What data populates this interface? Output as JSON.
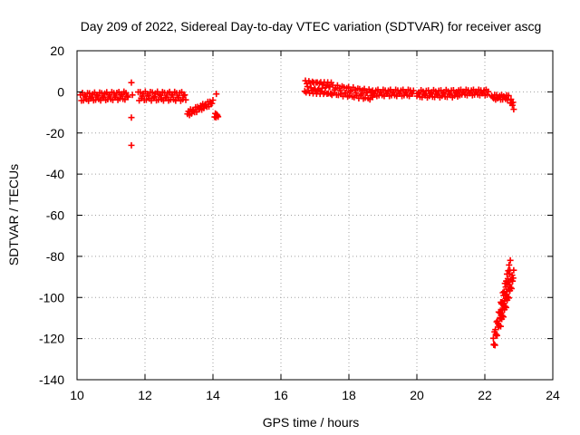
{
  "chart_data": {
    "type": "scatter",
    "title": "Day 209 of 2022, Sidereal Day-to-day VTEC variation (SDTVAR) for receiver ascg",
    "xlabel": "GPS time / hours",
    "ylabel": "SDTVAR / TECUs",
    "xlim": [
      10,
      24
    ],
    "ylim": [
      -140,
      20
    ],
    "xticks": [
      10,
      12,
      14,
      16,
      18,
      20,
      22,
      24
    ],
    "yticks": [
      20,
      0,
      -20,
      -40,
      -60,
      -80,
      -100,
      -120,
      -140
    ],
    "xtick_labels": [
      "10",
      "12",
      "14",
      "16",
      "18",
      "20",
      "22",
      "24"
    ],
    "ytick_labels": [
      "20",
      "0",
      "-20",
      "-40",
      "-60",
      "-80",
      "-100",
      "-120",
      "-140"
    ],
    "grid": true,
    "marker": "+",
    "color": "#ff0000",
    "series": [
      {
        "name": "SDTVAR",
        "segments": [
          {
            "x": [
              10.1,
              11.5
            ],
            "y": [
              -2.5,
              -1.8
            ],
            "spread": 2.0,
            "n": 48
          },
          {
            "x": [
              11.6,
              11.6
            ],
            "y": [
              4.5,
              4.5
            ],
            "spread": 0,
            "n": 1
          },
          {
            "x": [
              11.6,
              11.6
            ],
            "y": [
              -12.5,
              -12.5
            ],
            "spread": 0,
            "n": 1
          },
          {
            "x": [
              11.6,
              11.6
            ],
            "y": [
              -26,
              -26
            ],
            "spread": 0,
            "n": 1
          },
          {
            "x": [
              11.63,
              11.63
            ],
            "y": [
              -1.5,
              -1.5
            ],
            "spread": 0,
            "n": 1
          },
          {
            "x": [
              11.8,
              13.2
            ],
            "y": [
              -2.0,
              -2.2
            ],
            "spread": 2.2,
            "n": 48
          },
          {
            "x": [
              13.25,
              14.0
            ],
            "y": [
              -10.5,
              -5.0
            ],
            "spread": 1.3,
            "n": 26
          },
          {
            "x": [
              14.05,
              14.15
            ],
            "y": [
              -11.5,
              -11.5
            ],
            "spread": 1.0,
            "n": 6
          },
          {
            "x": [
              14.1,
              14.1
            ],
            "y": [
              -1.0,
              -1.0
            ],
            "spread": 0,
            "n": 1
          },
          {
            "x": [
              16.7,
              17.5
            ],
            "y": [
              2.5,
              1.5
            ],
            "spread": 3.0,
            "n": 40
          },
          {
            "x": [
              17.5,
              18.7
            ],
            "y": [
              1.0,
              -1.5
            ],
            "spread": 2.5,
            "n": 45
          },
          {
            "x": [
              18.7,
              19.9
            ],
            "y": [
              -0.5,
              -0.5
            ],
            "spread": 1.6,
            "n": 40
          },
          {
            "x": [
              20.0,
              21.2
            ],
            "y": [
              -1.0,
              -0.8
            ],
            "spread": 1.8,
            "n": 40
          },
          {
            "x": [
              21.2,
              22.1
            ],
            "y": [
              -0.3,
              -0.3
            ],
            "spread": 1.4,
            "n": 30
          },
          {
            "x": [
              22.2,
              22.7
            ],
            "y": [
              -2.5,
              -2.8
            ],
            "spread": 1.2,
            "n": 18
          },
          {
            "x": [
              22.75,
              22.85
            ],
            "y": [
              -4.0,
              -7.0
            ],
            "spread": 1.5,
            "n": 6
          },
          {
            "x": [
              22.25,
              22.75
            ],
            "y": [
              -123,
              -85
            ],
            "spread": 4.0,
            "n": 42
          },
          {
            "x": [
              22.45,
              22.85
            ],
            "y": [
              -112,
              -89
            ],
            "spread": 3.0,
            "n": 26
          }
        ]
      }
    ]
  }
}
